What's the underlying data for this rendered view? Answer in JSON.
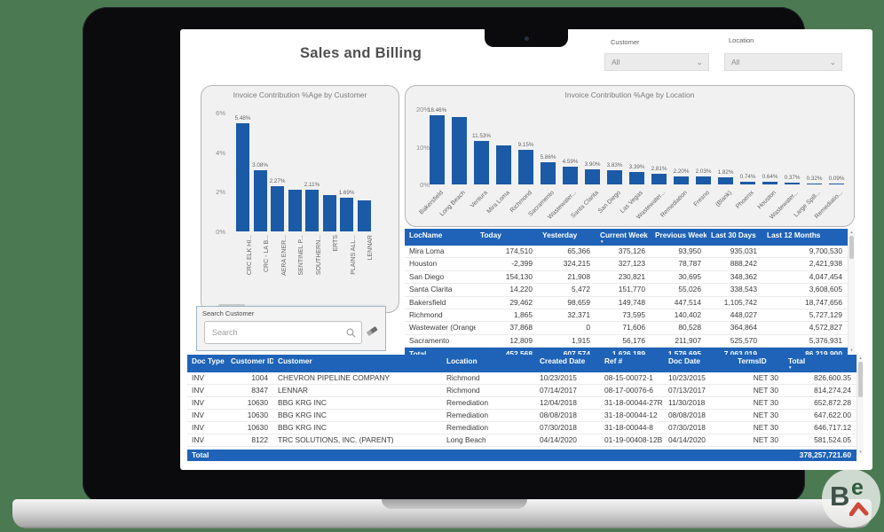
{
  "report": {
    "title": "Sales and Billing"
  },
  "colors": {
    "bar": "#1b5aa6",
    "table_header": "#1e63b8",
    "background": "#4b7a52",
    "accent_red": "#cf4a3a"
  },
  "icons": {
    "chevron_down": "⌄",
    "sort_desc": "▼",
    "scroll_up": "▲",
    "scroll_down": "▼"
  },
  "filters": {
    "customer": {
      "label": "Customer",
      "value": "All"
    },
    "location": {
      "label": "Location",
      "value": "All"
    }
  },
  "chart_data": [
    {
      "type": "bar",
      "title": "Invoice Contribution %Age by Customer",
      "categories": [
        "CRC ELK HI...",
        "CRC - LA B...",
        "AERA ENER...",
        "SENTINEL P...",
        "SOUTHERN...",
        "ERTS",
        "PLAINS ALL...",
        "LENNAR"
      ],
      "values": [
        5.48,
        3.08,
        2.27,
        2.12,
        2.11,
        1.85,
        1.69,
        1.55
      ],
      "bar_labels": [
        "5.48%",
        "3.08%",
        "2.27%",
        "",
        "2.11%",
        "",
        "1.69%",
        ""
      ],
      "xlabel": "",
      "ylabel": "",
      "ylim": [
        0,
        6
      ],
      "ytick_labels": [
        "6%",
        "4%",
        "2%",
        "0%"
      ],
      "ytick_values": [
        6,
        4,
        2,
        0
      ],
      "legend": "none",
      "grid": "off"
    },
    {
      "type": "bar",
      "title": "Invoice Contribution %Age by Location",
      "categories": [
        "Bakersfield",
        "Long Beach",
        "Ventura",
        "Mira Loma",
        "Richmond",
        "Sacramento",
        "Wastewater...",
        "Santa Clarita",
        "San Diego",
        "Las Vegas",
        "Wastewater...",
        "Remediation",
        "Fresno",
        "(Blank)",
        "Phoenix",
        "Houston",
        "Wastewater...",
        "Large Spill...",
        "Remediatio..."
      ],
      "values": [
        18.46,
        17.93,
        11.53,
        10.33,
        9.15,
        5.86,
        4.59,
        3.9,
        3.83,
        3.39,
        2.81,
        2.2,
        2.03,
        1.82,
        0.74,
        0.64,
        0.37,
        0.32,
        0.09
      ],
      "bar_labels": [
        "18.46%",
        "",
        "11.53%",
        "",
        "9.15%",
        "5.86%",
        "4.59%",
        "3.90%",
        "3.83%",
        "3.39%",
        "2.81%",
        "2.20%",
        "2.03%",
        "1.82%",
        "0.74%",
        "0.64%",
        "0.37%",
        "0.32%",
        "0.09%"
      ],
      "xlabel": "",
      "ylabel": "",
      "ylim": [
        0,
        20
      ],
      "ytick_labels": [
        "20%",
        "10%",
        "0%"
      ],
      "ytick_values": [
        20,
        10,
        0
      ],
      "legend": "none",
      "grid": "off"
    }
  ],
  "location_table": {
    "columns": [
      "LocName",
      "Today",
      "Yesterday",
      "Current Week",
      "Previous Week",
      "Last 30 Days",
      "Last 12 Months"
    ],
    "sorted_column": "Current Week",
    "rows": [
      [
        "Mira Loma",
        "174,510",
        "65,366",
        "375,126",
        "93,950",
        "935,031",
        "9,700,530"
      ],
      [
        "Houston",
        "-2,399",
        "324,215",
        "327,123",
        "78,787",
        "888,242",
        "2,421,938"
      ],
      [
        "San Diego",
        "154,130",
        "21,908",
        "230,821",
        "30,695",
        "348,362",
        "4,047,454"
      ],
      [
        "Santa Clarita",
        "14,220",
        "5,472",
        "151,770",
        "55,026",
        "338,543",
        "3,608,605"
      ],
      [
        "Bakersfield",
        "29,462",
        "98,659",
        "149,748",
        "447,514",
        "1,105,742",
        "18,747,656"
      ],
      [
        "Richmond",
        "1,865",
        "32,371",
        "73,595",
        "140,402",
        "448,027",
        "5,727,129"
      ],
      [
        "Wastewater (Orange)",
        "37,868",
        "0",
        "71,606",
        "80,528",
        "364,864",
        "4,572,827"
      ],
      [
        "Sacramento",
        "12,809",
        "1,915",
        "56,176",
        "211,907",
        "525,570",
        "5,376,931"
      ]
    ],
    "total_row": [
      "Total",
      "452,568",
      "607,574",
      "1,626,189",
      "1,576,695",
      "7,063,019",
      "86,219,900"
    ]
  },
  "search": {
    "label": "Search Customer",
    "placeholder": "Search"
  },
  "invoice_table": {
    "columns": [
      "Doc Type",
      "Customer ID",
      "Customer",
      "Location",
      "Created Date",
      "Ref #",
      "Doc Date",
      "TermsID",
      "Total"
    ],
    "sorted_column": "Total",
    "rows": [
      [
        "INV",
        "1004",
        "CHEVRON PIPELINE COMPANY",
        "Richmond",
        "10/23/2015",
        "08-15-00072-1",
        "10/23/2015",
        "NET 30",
        "826,600.35"
      ],
      [
        "INV",
        "8347",
        "LENNAR",
        "Richmond",
        "07/14/2017",
        "08-17-00076-6",
        "07/13/2017",
        "NET 30",
        "814,274.24"
      ],
      [
        "INV",
        "10630",
        "BBG KRG INC",
        "Remediation",
        "12/04/2018",
        "31-18-00044-27R",
        "11/30/2018",
        "NET 30",
        "652,872.28"
      ],
      [
        "INV",
        "10630",
        "BBG KRG INC",
        "Remediation",
        "08/08/2018",
        "31-18-00044-12",
        "08/08/2018",
        "NET 30",
        "647,622.00"
      ],
      [
        "INV",
        "10630",
        "BBG KRG INC",
        "Remediation",
        "07/30/2018",
        "31-18-00044-8",
        "07/30/2018",
        "NET 30",
        "646,717.12"
      ],
      [
        "INV",
        "8122",
        "TRC SOLUTIONS, INC. (PARENT)",
        "Long Beach",
        "04/14/2020",
        "01-19-00408-12B",
        "04/14/2020",
        "NET 30",
        "581,524.05"
      ]
    ],
    "total_row": [
      "Total",
      "",
      "",
      "",
      "",
      "",
      "",
      "",
      "378,257,721.60"
    ]
  },
  "watermark": {
    "text_b": "B",
    "text_e": "e"
  }
}
